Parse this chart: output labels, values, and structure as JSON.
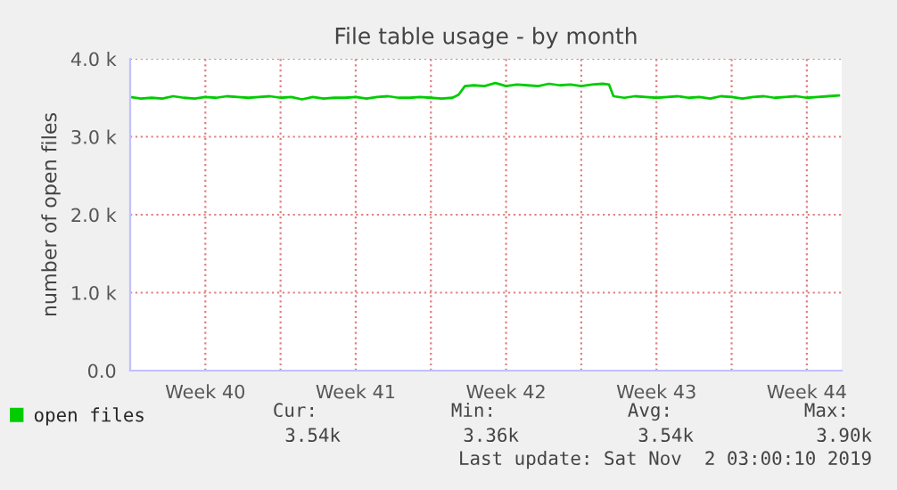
{
  "chart_data": {
    "type": "line",
    "title": "File table usage - by month",
    "ylabel": "number of open files",
    "x": [
      "2019-09-30",
      "2019-09-30T12:00",
      "2019-10-01",
      "2019-10-01T12:00",
      "2019-10-02",
      "2019-10-02T12:00",
      "2019-10-03",
      "2019-10-03T12:00",
      "2019-10-04",
      "2019-10-04T12:00",
      "2019-10-05",
      "2019-10-05T12:00",
      "2019-10-06",
      "2019-10-06T12:00",
      "2019-10-07",
      "2019-10-07T12:00",
      "2019-10-08",
      "2019-10-08T12:00",
      "2019-10-09",
      "2019-10-09T12:00",
      "2019-10-10",
      "2019-10-10T12:00",
      "2019-10-11",
      "2019-10-11T12:00",
      "2019-10-12",
      "2019-10-12T12:00",
      "2019-10-13",
      "2019-10-13T12:00",
      "2019-10-14",
      "2019-10-14T12:00",
      "2019-10-15",
      "2019-10-15T07:00",
      "2019-10-15T14:00",
      "2019-10-16",
      "2019-10-16T12:00",
      "2019-10-17",
      "2019-10-17T12:00",
      "2019-10-18",
      "2019-10-18T12:00",
      "2019-10-19",
      "2019-10-19T12:00",
      "2019-10-20",
      "2019-10-20T12:00",
      "2019-10-21",
      "2019-10-21T12:00",
      "2019-10-22",
      "2019-10-22T07:00",
      "2019-10-22T12:00",
      "2019-10-23",
      "2019-10-23T12:00",
      "2019-10-24",
      "2019-10-24T12:00",
      "2019-10-25",
      "2019-10-25T12:00",
      "2019-10-26",
      "2019-10-26T12:00",
      "2019-10-27",
      "2019-10-27T12:00",
      "2019-10-28",
      "2019-10-28T12:00",
      "2019-10-29",
      "2019-10-29T12:00",
      "2019-10-30",
      "2019-10-30T12:00",
      "2019-10-31",
      "2019-10-31T12:00",
      "2019-11-01",
      "2019-11-01T12:00",
      "2019-11-02"
    ],
    "series": [
      {
        "name": "open files",
        "color": "#00cc00",
        "values": [
          3510,
          3490,
          3500,
          3490,
          3520,
          3500,
          3490,
          3510,
          3500,
          3520,
          3510,
          3500,
          3510,
          3520,
          3500,
          3510,
          3480,
          3510,
          3490,
          3500,
          3500,
          3510,
          3490,
          3510,
          3520,
          3500,
          3500,
          3510,
          3500,
          3490,
          3500,
          3540,
          3650,
          3660,
          3650,
          3690,
          3650,
          3670,
          3660,
          3650,
          3680,
          3660,
          3670,
          3650,
          3670,
          3680,
          3670,
          3520,
          3500,
          3520,
          3510,
          3500,
          3510,
          3520,
          3500,
          3510,
          3490,
          3520,
          3510,
          3490,
          3510,
          3520,
          3500,
          3510,
          3520,
          3500,
          3510,
          3520,
          3530
        ]
      }
    ],
    "xlim": [
      "2019-09-30",
      "2019-11-02T03:00"
    ],
    "xticks": [
      {
        "value": "2019-10-03T12:00",
        "label": "Week 40"
      },
      {
        "value": "2019-10-07",
        "label": null
      },
      {
        "value": "2019-10-10T12:00",
        "label": "Week 41"
      },
      {
        "value": "2019-10-14",
        "label": null
      },
      {
        "value": "2019-10-17T12:00",
        "label": "Week 42"
      },
      {
        "value": "2019-10-21",
        "label": null
      },
      {
        "value": "2019-10-24T12:00",
        "label": "Week 43"
      },
      {
        "value": "2019-10-28",
        "label": null
      },
      {
        "value": "2019-10-31T12:00",
        "label": "Week 44"
      }
    ],
    "ylim": [
      0,
      4000
    ],
    "yticks": [
      {
        "value": 0,
        "label": "0.0"
      },
      {
        "value": 1000,
        "label": "1.0 k"
      },
      {
        "value": 2000,
        "label": "2.0 k"
      },
      {
        "value": 3000,
        "label": "3.0 k"
      },
      {
        "value": 4000,
        "label": "4.0 k"
      }
    ],
    "grid": true,
    "legend": "bottom left",
    "annotations": [
      "Cur:",
      "Min:",
      "Avg:",
      "Max:",
      "3.54k",
      "3.36k",
      "3.54k",
      "3.90k",
      "Last update: Sat Nov  2 03:00:10 2019"
    ]
  }
}
